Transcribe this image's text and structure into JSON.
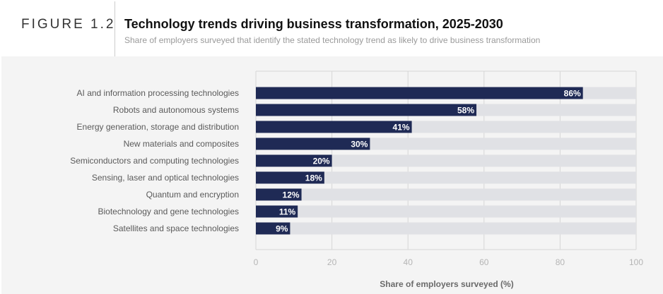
{
  "header": {
    "figure_label": "FIGURE 1.2",
    "title": "Technology trends driving business transformation, 2025-2030",
    "subtitle": "Share of employers surveyed that identify the stated technology trend as likely to drive business transformation"
  },
  "colors": {
    "bar": "#1f2a55",
    "track": "#e0e1e5",
    "gridline": "#d6d6d6",
    "panel": "#f4f4f4"
  },
  "chart_data": {
    "type": "bar",
    "orientation": "horizontal",
    "title": "Technology trends driving business transformation, 2025-2030",
    "subtitle": "Share of employers surveyed that identify the stated technology trend as likely to drive business transformation",
    "categories": [
      "AI and information processing technologies",
      "Robots and autonomous systems",
      "Energy generation, storage and distribution",
      "New materials and composites",
      "Semiconductors and computing technologies",
      "Sensing, laser and optical technologies",
      "Quantum and encryption",
      "Biotechnology and gene technologies",
      "Satellites and space technologies"
    ],
    "values": [
      86,
      58,
      41,
      30,
      20,
      18,
      12,
      11,
      9
    ],
    "value_labels": [
      "86%",
      "58%",
      "41%",
      "30%",
      "20%",
      "18%",
      "12%",
      "11%",
      "9%"
    ],
    "xlabel": "Share of employers surveyed (%)",
    "ylabel": "",
    "xlim": [
      0,
      100
    ],
    "xticks": [
      0,
      20,
      40,
      60,
      80,
      100
    ],
    "xtick_labels": [
      "0",
      "20",
      "40",
      "60",
      "80",
      "100"
    ],
    "grid": true,
    "legend": "none"
  }
}
